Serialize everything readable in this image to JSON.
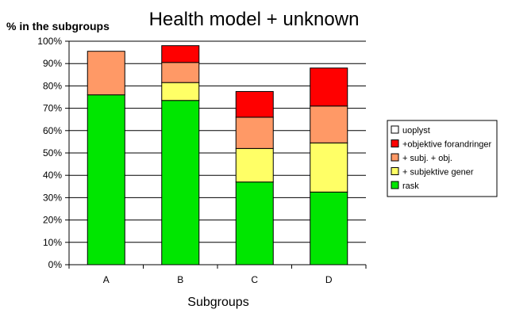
{
  "chart_data": {
    "type": "bar",
    "stacked": true,
    "title": "Health model + unknown",
    "xlabel": "Subgroups",
    "ylabel": "% in the subgroups",
    "ylim": [
      0,
      100
    ],
    "y_ticks": [
      "0%",
      "10%",
      "20%",
      "30%",
      "40%",
      "50%",
      "60%",
      "70%",
      "80%",
      "90%",
      "100%"
    ],
    "grid": "horizontal",
    "legend_position": "right",
    "categories": [
      "A",
      "B",
      "C",
      "D"
    ],
    "series": [
      {
        "name": "rask",
        "color": "#00e600",
        "values": [
          76,
          73.5,
          37,
          32.5
        ]
      },
      {
        "name": "+ subjektive gener",
        "color": "#ffff66",
        "values": [
          0,
          8,
          15,
          22
        ]
      },
      {
        "name": "+ subj. + obj.",
        "color": "#ff9966",
        "values": [
          19.5,
          9,
          14,
          16.5
        ]
      },
      {
        "name": "+objektive forandringer",
        "color": "#ff0000",
        "values": [
          0,
          7.5,
          11.5,
          17
        ]
      },
      {
        "name": "uoplyst",
        "color": "#ffffff",
        "values": [
          0,
          0,
          0,
          0
        ]
      }
    ]
  }
}
